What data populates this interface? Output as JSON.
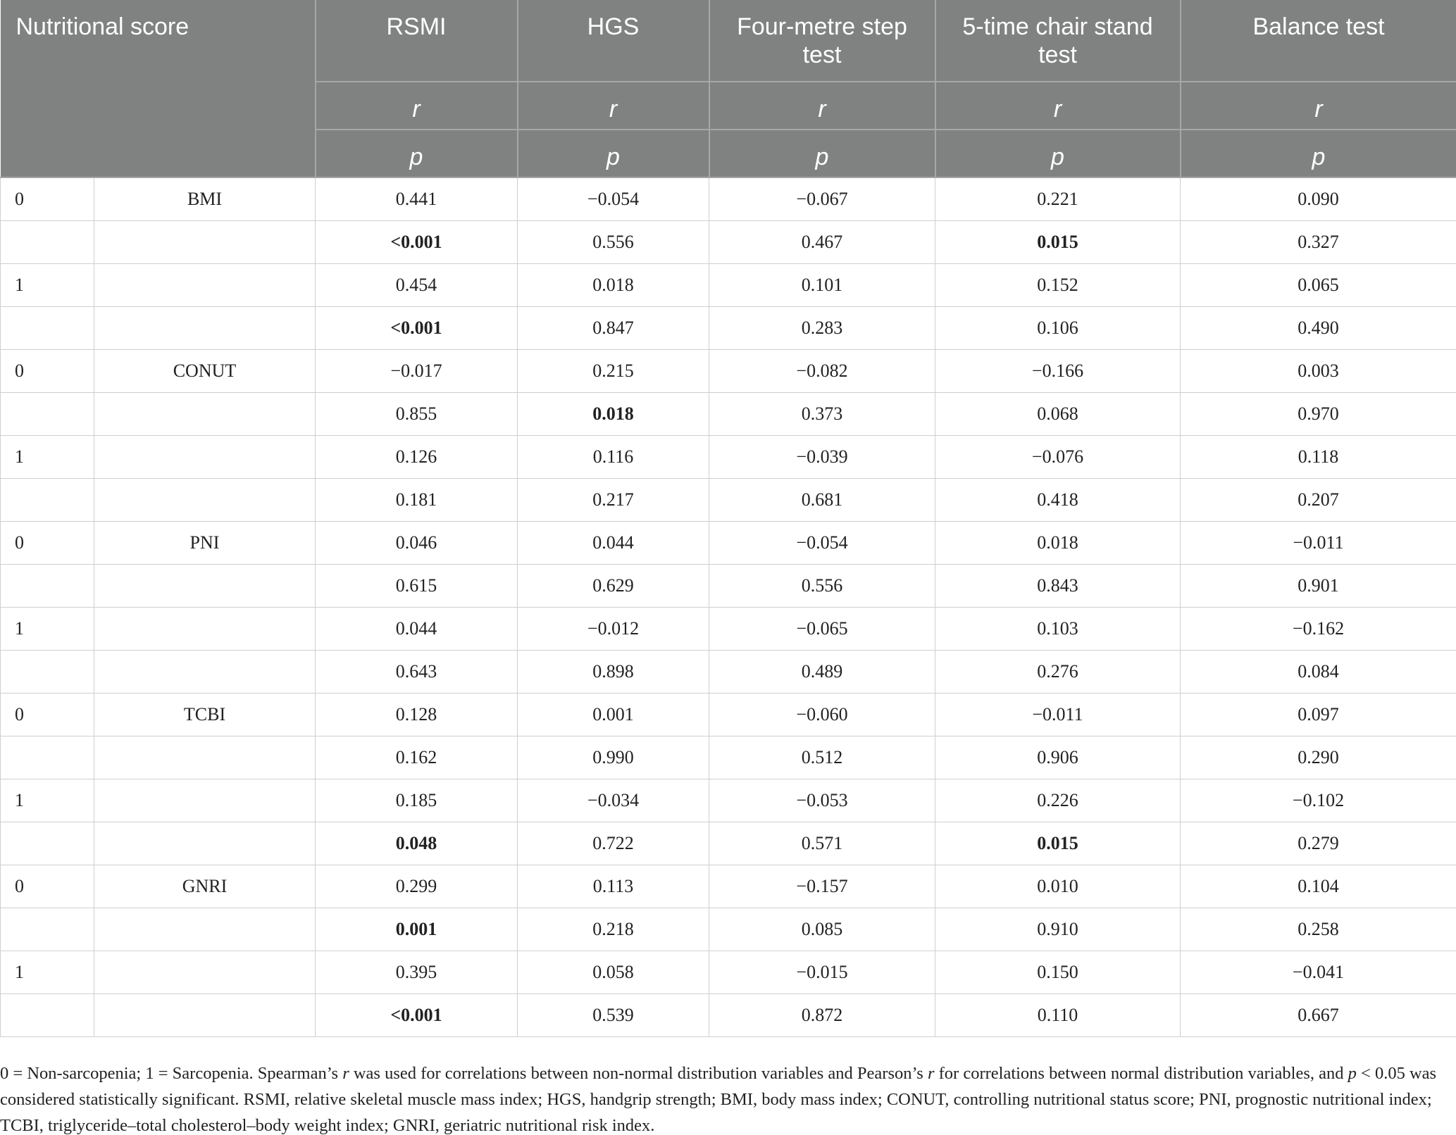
{
  "table": {
    "header": {
      "title": "Nutritional score",
      "columns": [
        "RSMI",
        "HGS",
        "Four-metre step test",
        "5-time chair stand test",
        "Balance test"
      ],
      "r": "r",
      "p": "p"
    },
    "rows": [
      {
        "group": "0",
        "score": "BMI",
        "values": [
          "0.441",
          "−0.054",
          "−0.067",
          "0.221",
          "0.090"
        ]
      },
      {
        "values": [
          "<0.001",
          "0.556",
          "0.467",
          "0.015",
          "0.327"
        ],
        "bold": [
          true,
          false,
          false,
          true,
          false
        ]
      },
      {
        "group": "1",
        "values": [
          "0.454",
          "0.018",
          "0.101",
          "0.152",
          "0.065"
        ]
      },
      {
        "values": [
          "<0.001",
          "0.847",
          "0.283",
          "0.106",
          "0.490"
        ],
        "bold": [
          true,
          false,
          false,
          false,
          false
        ]
      },
      {
        "group": "0",
        "score": "CONUT",
        "values": [
          "−0.017",
          "0.215",
          "−0.082",
          "−0.166",
          "0.003"
        ]
      },
      {
        "values": [
          "0.855",
          "0.018",
          "0.373",
          "0.068",
          "0.970"
        ],
        "bold": [
          false,
          true,
          false,
          false,
          false
        ]
      },
      {
        "group": "1",
        "values": [
          "0.126",
          "0.116",
          "−0.039",
          "−0.076",
          "0.118"
        ]
      },
      {
        "values": [
          "0.181",
          "0.217",
          "0.681",
          "0.418",
          "0.207"
        ]
      },
      {
        "group": "0",
        "score": "PNI",
        "values": [
          "0.046",
          "0.044",
          "−0.054",
          "0.018",
          "−0.011"
        ]
      },
      {
        "values": [
          "0.615",
          "0.629",
          "0.556",
          "0.843",
          "0.901"
        ]
      },
      {
        "group": "1",
        "values": [
          "0.044",
          "−0.012",
          "−0.065",
          "0.103",
          "−0.162"
        ]
      },
      {
        "values": [
          "0.643",
          "0.898",
          "0.489",
          "0.276",
          "0.084"
        ]
      },
      {
        "group": "0",
        "score": "TCBI",
        "values": [
          "0.128",
          "0.001",
          "−0.060",
          "−0.011",
          "0.097"
        ]
      },
      {
        "values": [
          "0.162",
          "0.990",
          "0.512",
          "0.906",
          "0.290"
        ]
      },
      {
        "group": "1",
        "values": [
          "0.185",
          "−0.034",
          "−0.053",
          "0.226",
          "−0.102"
        ]
      },
      {
        "values": [
          "0.048",
          "0.722",
          "0.571",
          "0.015",
          "0.279"
        ],
        "bold": [
          true,
          false,
          false,
          true,
          false
        ]
      },
      {
        "group": "0",
        "score": "GNRI",
        "values": [
          "0.299",
          "0.113",
          "−0.157",
          "0.010",
          "0.104"
        ]
      },
      {
        "values": [
          "0.001",
          "0.218",
          "0.085",
          "0.910",
          "0.258"
        ],
        "bold": [
          true,
          false,
          false,
          false,
          false
        ]
      },
      {
        "group": "1",
        "values": [
          "0.395",
          "0.058",
          "−0.015",
          "0.150",
          "−0.041"
        ]
      },
      {
        "values": [
          "<0.001",
          "0.539",
          "0.872",
          "0.110",
          "0.667"
        ],
        "bold": [
          true,
          false,
          false,
          false,
          false
        ]
      }
    ]
  },
  "footnote": "0 = Non-sarcopenia; 1 = Sarcopenia. Spearman’s r was used for correlations between non-normal distribution variables and Pearson’s r for correlations between normal distribution variables, and p < 0.05 was considered statistically significant. RSMI, relative skeletal muscle mass index; HGS, handgrip strength; BMI, body mass index; CONUT, controlling nutritional status score; PNI, prognostic nutritional index; TCBI, triglyceride–total cholesterol–body weight index; GNRI, geriatric nutritional risk index."
}
